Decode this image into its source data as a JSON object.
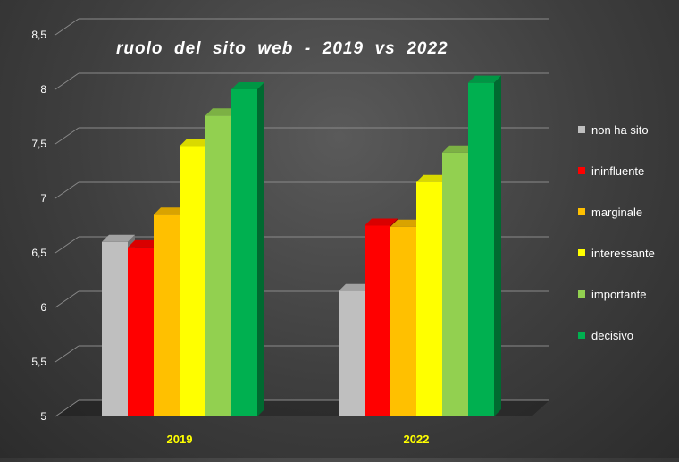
{
  "chart_data": {
    "type": "bar",
    "title": "ruolo  del  sito  web  -  2019  vs  2022",
    "categories": [
      "2019",
      "2022"
    ],
    "series": [
      {
        "name": "non ha sito",
        "color": "#bfbfbf",
        "values": [
          6.6,
          6.15
        ]
      },
      {
        "name": "ininfluente",
        "color": "#ff0000",
        "values": [
          6.55,
          6.75
        ]
      },
      {
        "name": "marginale",
        "color": "#ffc000",
        "values": [
          6.85,
          6.74
        ]
      },
      {
        "name": "interessante",
        "color": "#ffff00",
        "values": [
          7.48,
          7.15
        ]
      },
      {
        "name": "importante",
        "color": "#92d050",
        "values": [
          7.76,
          7.42
        ]
      },
      {
        "name": "decisivo",
        "color": "#00b050",
        "values": [
          8.0,
          8.06
        ]
      }
    ],
    "ylim": [
      5,
      8.5
    ],
    "yticks": [
      "5",
      "5,5",
      "6",
      "6,5",
      "7",
      "7,5",
      "8",
      "8,5"
    ],
    "grid": true,
    "legend_position": "right",
    "category_label_color": "#ffff00"
  }
}
